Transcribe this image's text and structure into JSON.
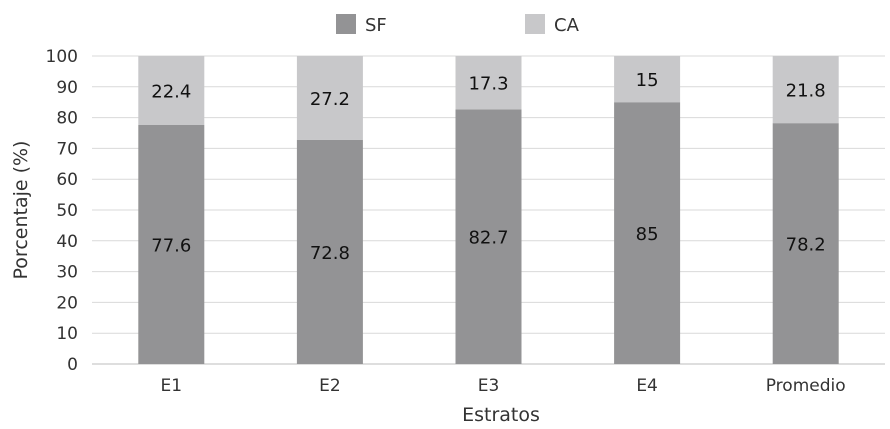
{
  "chart_data": {
    "type": "bar",
    "stacked": true,
    "categories": [
      "E1",
      "E2",
      "E3",
      "E4",
      "Promedio"
    ],
    "series": [
      {
        "name": "SF",
        "values": [
          77.6,
          72.8,
          82.7,
          85,
          78.2
        ],
        "color": "#939395"
      },
      {
        "name": "CA",
        "values": [
          22.4,
          27.2,
          17.3,
          15,
          21.8
        ],
        "color": "#c8c8ca"
      }
    ],
    "title": "",
    "xlabel": "Estratos",
    "ylabel": "Porcentaje (%)",
    "ylim": [
      0,
      100
    ],
    "yticks": [
      0,
      10,
      20,
      30,
      40,
      50,
      60,
      70,
      80,
      90,
      100
    ],
    "grid": true,
    "legend": "top-center"
  }
}
